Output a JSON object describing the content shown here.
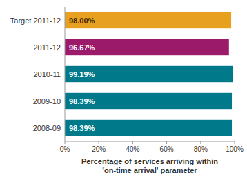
{
  "chart_data": {
    "type": "bar",
    "orientation": "horizontal",
    "categories": [
      "Target 2011-12",
      "2011-12",
      "2010-11",
      "2009-10",
      "2008-09"
    ],
    "values": [
      98.0,
      96.67,
      99.19,
      98.39,
      98.39
    ],
    "value_labels": [
      "98.00%",
      "96.67%",
      "99.19%",
      "98.39%",
      "98.39%"
    ],
    "data_labels": true,
    "colors": [
      "#E8A020",
      "#9B1A6A",
      "#007A8A",
      "#007A8A",
      "#007A8A"
    ],
    "xlabel": "Percentage of services arriving within\n'on-time arrival' parameter",
    "xlim": [
      0,
      100
    ],
    "xticks": [
      {
        "value": 0,
        "label": "0%"
      },
      {
        "value": 20,
        "label": "20%"
      },
      {
        "value": 40,
        "label": "40%"
      },
      {
        "value": 60,
        "label": "60%"
      },
      {
        "value": 80,
        "label": "80%"
      },
      {
        "value": 100,
        "label": "100%"
      }
    ],
    "grid": false
  }
}
